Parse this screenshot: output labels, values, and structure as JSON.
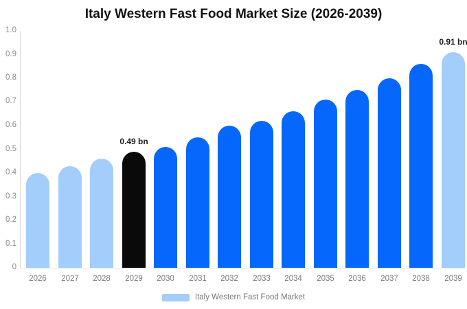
{
  "title": "Italy Western Fast Food Market Size (2026-2039)",
  "chart_data": {
    "type": "bar",
    "title": "Italy Western Fast Food Market Size (2026-2039)",
    "categories": [
      "2026",
      "2027",
      "2028",
      "2029",
      "2030",
      "2031",
      "2032",
      "2033",
      "2034",
      "2035",
      "2036",
      "2037",
      "2038",
      "2039"
    ],
    "values": [
      0.4,
      0.43,
      0.46,
      0.49,
      0.51,
      0.55,
      0.6,
      0.62,
      0.66,
      0.71,
      0.75,
      0.8,
      0.86,
      0.91
    ],
    "unit": "bn",
    "bar_labels": [
      "",
      "",
      "",
      "0.49 bn",
      "",
      "",
      "",
      "",
      "",
      "",
      "",
      "",
      "",
      "0.91 bn"
    ],
    "bar_color_keys": [
      "light",
      "light",
      "light",
      "black",
      "blue",
      "blue",
      "blue",
      "blue",
      "blue",
      "blue",
      "blue",
      "blue",
      "blue",
      "light"
    ],
    "ylim": [
      0,
      1.0
    ],
    "ytick_labels": [
      "0",
      "0.1",
      "0.2",
      "0.3",
      "0.4",
      "0.5",
      "0.6",
      "0.7",
      "0.8",
      "0.9",
      "1.0"
    ],
    "xlabel": "",
    "ylabel": "",
    "grid": false,
    "legend": {
      "position": "bottom",
      "entries": [
        "Italy Western Fast Food Market"
      ]
    }
  },
  "colors": {
    "light": "#a3cdfb",
    "blue": "#0567fb",
    "black": "#0a0a0a",
    "axis_line": "#d8d8d8",
    "baseline": "#e4e4e4",
    "ytick_text": "#8c8c8c",
    "xtick_text": "#7a7a7a",
    "annotation_text": "#1f1f1f",
    "legend_text": "#757575",
    "title_text": "#111111"
  }
}
